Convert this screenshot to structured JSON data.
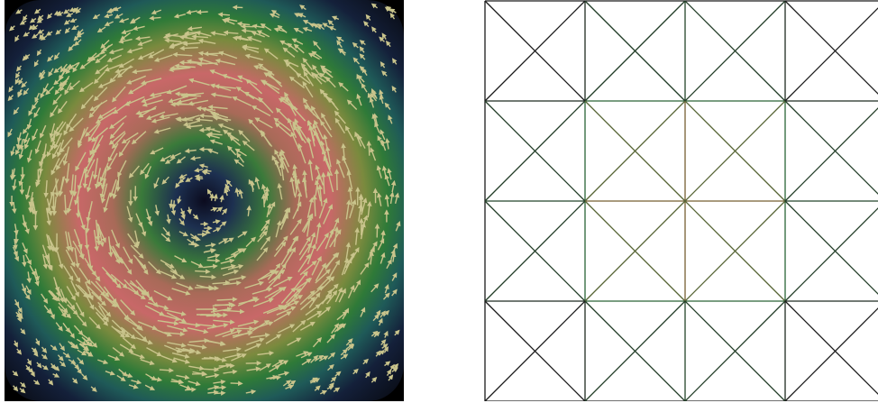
{
  "figure": {
    "left_panel": {
      "kind": "vortex-velocity-field",
      "background": "#000000",
      "colormap": [
        "#0b0b1e",
        "#1d2a4a",
        "#1f5a58",
        "#2f7a38",
        "#6b8a3c",
        "#b06a5c",
        "#c86868"
      ],
      "arrow_color": "#c9c48c",
      "vortex_center": [
        0.5,
        0.5
      ],
      "peak_speed_radius": 0.3
    },
    "right_panel": {
      "kind": "triangulated-mesh",
      "grid_cells": 4,
      "edge_colors": {
        "low": "#1a1a1a",
        "mid": "#2c6e3a",
        "high": "#c0502a"
      }
    }
  }
}
